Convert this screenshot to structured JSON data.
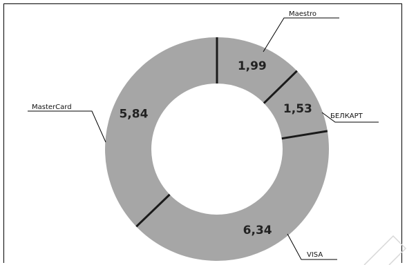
{
  "chart_data": {
    "type": "pie",
    "donut": true,
    "title": "",
    "legend": "none",
    "slices": [
      {
        "name": "Maestro",
        "value": 1.99,
        "label": "1,99"
      },
      {
        "name": "БЕЛКАРТ",
        "value": 1.53,
        "label": "1,53"
      },
      {
        "name": "VISA",
        "value": 6.34,
        "label": "6,34"
      },
      {
        "name": "MasterCard",
        "value": 5.84,
        "label": "5,84"
      }
    ]
  },
  "colors": {
    "slice_fill": "#a6a6a6",
    "separator": "#1a1a1a",
    "leader_line": "#000000",
    "background": "#ffffff"
  }
}
